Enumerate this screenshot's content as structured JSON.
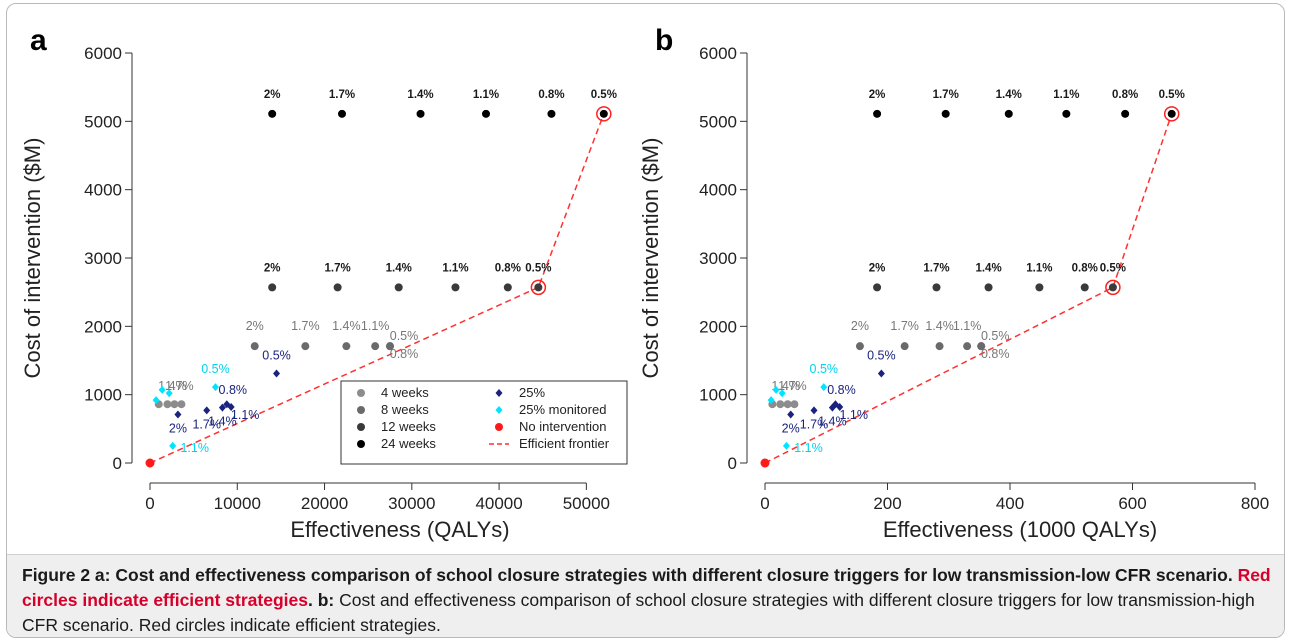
{
  "panels": [
    {
      "letter": "a",
      "xlabel": "Effectiveness (QALYs)",
      "ylabel": "Cost of intervention ($M)",
      "xlim": [
        0,
        55000
      ],
      "ylim": [
        0,
        6000
      ],
      "xticks": [
        0,
        10000,
        20000,
        30000,
        40000,
        50000
      ],
      "xtick_labels": [
        "0",
        "10000",
        "20000",
        "30000",
        "40000",
        "50000"
      ],
      "yticks": [
        0,
        1000,
        2000,
        3000,
        4000,
        5000,
        6000
      ],
      "ytick_labels": [
        "0",
        "1000",
        "2000",
        "3000",
        "4000",
        "5000",
        "6000"
      ]
    },
    {
      "letter": "b",
      "xlabel": "Effectiveness (1000 QALYs)",
      "ylabel": "Cost of intervention ($M)",
      "xlim": [
        0,
        800
      ],
      "ylim": [
        0,
        6000
      ],
      "xticks": [
        0,
        200,
        400,
        600,
        800
      ],
      "xtick_labels": [
        "0",
        "200",
        "400",
        "600",
        "800"
      ],
      "yticks": [
        0,
        1000,
        2000,
        3000,
        4000,
        5000,
        6000
      ],
      "ytick_labels": [
        "0",
        "1000",
        "2000",
        "3000",
        "4000",
        "5000",
        "6000"
      ]
    }
  ],
  "legend": {
    "left": [
      {
        "label": "4 weeks",
        "marker": "circle",
        "color": "#8c8c8c"
      },
      {
        "label": "8 weeks",
        "marker": "circle",
        "color": "#6a6a6a"
      },
      {
        "label": "12 weeks",
        "marker": "circle",
        "color": "#3a3a3a"
      },
      {
        "label": "24 weeks",
        "marker": "circle",
        "color": "#000000"
      }
    ],
    "right": [
      {
        "label": "25%",
        "marker": "diamond",
        "color": "#1a237e"
      },
      {
        "label": "25% monitored",
        "marker": "diamond",
        "color": "#00e5ff"
      },
      {
        "label": "No intervention",
        "marker": "circle",
        "color": "#ff1a1a"
      },
      {
        "label": "Efficient frontier",
        "marker": "dash",
        "color": "#ff3030"
      }
    ]
  },
  "caption": {
    "part_a_label": "Figure 2 a:",
    "part_a_text": " Cost and effectiveness comparison of school closure strategies with different closure triggers for low transmission-low CFR scenario.",
    "part_a_red": " Red circles indicate efficient strategies",
    "part_a_end": ".",
    "part_b_label": " b:",
    "part_b_text": " Cost and effectiveness comparison of school closure strategies with different closure triggers for low transmission-high CFR scenario. Red circles indicate efficient strategies."
  },
  "chart_data": [
    {
      "type": "scatter",
      "panel": "a",
      "series": [
        {
          "name": "24 weeks",
          "color": "#000000",
          "points": [
            {
              "x": 14000,
              "y": 5110,
              "label": "2%"
            },
            {
              "x": 22000,
              "y": 5110,
              "label": "1.7%"
            },
            {
              "x": 31000,
              "y": 5110,
              "label": "1.4%"
            },
            {
              "x": 38500,
              "y": 5110,
              "label": "1.1%"
            },
            {
              "x": 46000,
              "y": 5110,
              "label": "0.8%"
            },
            {
              "x": 52000,
              "y": 5110,
              "label": "0.5%"
            }
          ]
        },
        {
          "name": "12 weeks",
          "color": "#3a3a3a",
          "points": [
            {
              "x": 14000,
              "y": 2570,
              "label": "2%"
            },
            {
              "x": 21500,
              "y": 2570,
              "label": "1.7%"
            },
            {
              "x": 28500,
              "y": 2570,
              "label": "1.4%"
            },
            {
              "x": 35000,
              "y": 2570,
              "label": "1.1%"
            },
            {
              "x": 41000,
              "y": 2570,
              "label": "0.8%"
            },
            {
              "x": 44500,
              "y": 2570,
              "label": "0.5%"
            }
          ]
        },
        {
          "name": "8 weeks",
          "color": "#6a6a6a",
          "points": [
            {
              "x": 12000,
              "y": 1710,
              "label": "2%"
            },
            {
              "x": 17800,
              "y": 1710,
              "label": "1.7%"
            },
            {
              "x": 22500,
              "y": 1710,
              "label": "1.4%"
            },
            {
              "x": 25800,
              "y": 1710,
              "label": "1.1%"
            },
            {
              "x": 27500,
              "y": 1710,
              "label": "0.5%"
            },
            {
              "x": 27500,
              "y": 1710,
              "label": "0.8%"
            }
          ]
        },
        {
          "name": "4 weeks",
          "color": "#8c8c8c",
          "points": [
            {
              "x": 1000,
              "y": 860,
              "label": ""
            },
            {
              "x": 2000,
              "y": 860,
              "label": ""
            },
            {
              "x": 2800,
              "y": 860,
              "label": "1.4%"
            },
            {
              "x": 3600,
              "y": 860,
              "label": "1.7%"
            }
          ]
        },
        {
          "name": "25%",
          "color": "#1a237e",
          "points": [
            {
              "x": 3200,
              "y": 710,
              "label": "2%"
            },
            {
              "x": 6500,
              "y": 770,
              "label": "1.7%"
            },
            {
              "x": 8300,
              "y": 810,
              "label": "1.4%"
            },
            {
              "x": 8800,
              "y": 860,
              "label": "0.8%"
            },
            {
              "x": 9300,
              "y": 820,
              "label": "1.1%"
            },
            {
              "x": 14500,
              "y": 1310,
              "label": "0.5%"
            }
          ]
        },
        {
          "name": "25% monitored",
          "color": "#00e5ff",
          "points": [
            {
              "x": 700,
              "y": 920,
              "label": ""
            },
            {
              "x": 1400,
              "y": 1070,
              "label": ""
            },
            {
              "x": 2200,
              "y": 1020,
              "label": ""
            },
            {
              "x": 2600,
              "y": 250,
              "label": "1.1%"
            },
            {
              "x": 7500,
              "y": 1110,
              "label": "0.5%"
            }
          ]
        },
        {
          "name": "No intervention",
          "color": "#ff1a1a",
          "points": [
            {
              "x": 0,
              "y": 0,
              "label": ""
            }
          ]
        }
      ],
      "efficient_frontier": [
        {
          "x": 0,
          "y": 0
        },
        {
          "x": 44500,
          "y": 2570
        },
        {
          "x": 52000,
          "y": 5110
        }
      ]
    },
    {
      "type": "scatter",
      "panel": "b",
      "series": [
        {
          "name": "24 weeks",
          "color": "#000000",
          "points": [
            {
              "x": 183,
              "y": 5110,
              "label": "2%"
            },
            {
              "x": 295,
              "y": 5110,
              "label": "1.7%"
            },
            {
              "x": 398,
              "y": 5110,
              "label": "1.4%"
            },
            {
              "x": 492,
              "y": 5110,
              "label": "1.1%"
            },
            {
              "x": 588,
              "y": 5110,
              "label": "0.8%"
            },
            {
              "x": 664,
              "y": 5110,
              "label": "0.5%"
            }
          ]
        },
        {
          "name": "12 weeks",
          "color": "#3a3a3a",
          "points": [
            {
              "x": 183,
              "y": 2570,
              "label": "2%"
            },
            {
              "x": 280,
              "y": 2570,
              "label": "1.7%"
            },
            {
              "x": 365,
              "y": 2570,
              "label": "1.4%"
            },
            {
              "x": 448,
              "y": 2570,
              "label": "1.1%"
            },
            {
              "x": 522,
              "y": 2570,
              "label": "0.8%"
            },
            {
              "x": 568,
              "y": 2570,
              "label": "0.5%"
            }
          ]
        },
        {
          "name": "8 weeks",
          "color": "#6a6a6a",
          "points": [
            {
              "x": 155,
              "y": 1710,
              "label": "2%"
            },
            {
              "x": 228,
              "y": 1710,
              "label": "1.7%"
            },
            {
              "x": 285,
              "y": 1710,
              "label": "1.4%"
            },
            {
              "x": 330,
              "y": 1710,
              "label": "1.1%"
            },
            {
              "x": 353,
              "y": 1710,
              "label": "0.5%"
            },
            {
              "x": 353,
              "y": 1710,
              "label": "0.8%"
            }
          ]
        },
        {
          "name": "4 weeks",
          "color": "#8c8c8c",
          "points": [
            {
              "x": 12,
              "y": 860,
              "label": ""
            },
            {
              "x": 25,
              "y": 860,
              "label": ""
            },
            {
              "x": 37,
              "y": 860,
              "label": "1.4%"
            },
            {
              "x": 48,
              "y": 860,
              "label": "1.7%"
            }
          ]
        },
        {
          "name": "25%",
          "color": "#1a237e",
          "points": [
            {
              "x": 42,
              "y": 710,
              "label": "2%"
            },
            {
              "x": 80,
              "y": 770,
              "label": "1.7%"
            },
            {
              "x": 110,
              "y": 810,
              "label": "1.4%"
            },
            {
              "x": 115,
              "y": 860,
              "label": "0.8%"
            },
            {
              "x": 122,
              "y": 820,
              "label": "1.1%"
            },
            {
              "x": 190,
              "y": 1310,
              "label": "0.5%"
            }
          ]
        },
        {
          "name": "25% monitored",
          "color": "#00e5ff",
          "points": [
            {
              "x": 10,
              "y": 920,
              "label": ""
            },
            {
              "x": 18,
              "y": 1070,
              "label": ""
            },
            {
              "x": 28,
              "y": 1020,
              "label": ""
            },
            {
              "x": 35,
              "y": 250,
              "label": "1.1%"
            },
            {
              "x": 96,
              "y": 1110,
              "label": "0.5%"
            }
          ]
        },
        {
          "name": "No intervention",
          "color": "#ff1a1a",
          "points": [
            {
              "x": 0,
              "y": 0,
              "label": ""
            }
          ]
        }
      ],
      "efficient_frontier": [
        {
          "x": 0,
          "y": 0
        },
        {
          "x": 568,
          "y": 2570
        },
        {
          "x": 664,
          "y": 5110
        }
      ]
    }
  ]
}
